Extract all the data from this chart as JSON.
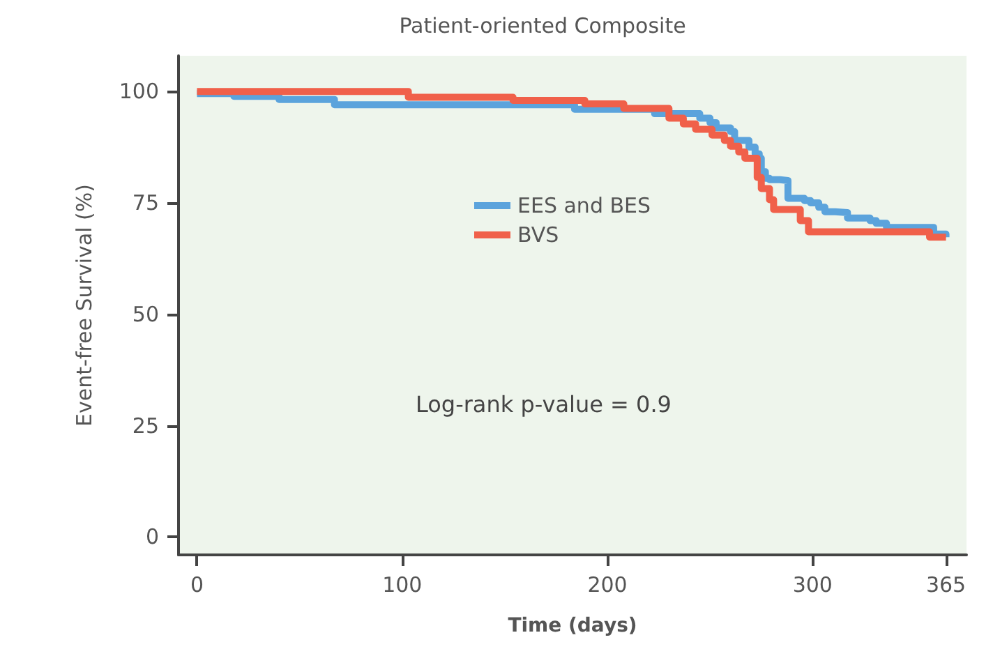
{
  "chart_data": {
    "type": "step",
    "title": "Patient-oriented Composite",
    "xlabel": "Time (days)",
    "ylabel": "Event-free Survival (%)",
    "xlim": [
      -9,
      375
    ],
    "xticks": [
      0,
      100,
      200,
      300,
      365
    ],
    "ylim": [
      -4,
      108
    ],
    "yticks": [
      0,
      25,
      50,
      75,
      100
    ],
    "grid": false,
    "legend": "right",
    "marker": "none",
    "line_style": "solid",
    "annotations": [
      "Log-rank p-value = 0.9"
    ],
    "series": [
      {
        "name": "EES and BES",
        "color": "#5ba3dc",
        "x": [
          0,
          18,
          40,
          67,
          184,
          223,
          245,
          250,
          253,
          260,
          262,
          269,
          272,
          274,
          275,
          277,
          279,
          284,
          288,
          296,
          299,
          303,
          306,
          311,
          317,
          328,
          331,
          336,
          359,
          365
        ],
        "values": [
          99.5,
          98.9,
          98.2,
          97,
          96,
          95,
          94,
          93,
          91.8,
          91,
          89,
          87.5,
          86,
          85,
          82,
          80.5,
          80.2,
          80,
          76,
          75.5,
          75,
          74,
          73,
          72.8,
          71.6,
          71,
          70.4,
          69.5,
          68,
          67.3
        ]
      },
      {
        "name": "BVS",
        "color": "#f0604a",
        "x": [
          0,
          103,
          154,
          189,
          208,
          230,
          237,
          243,
          251,
          257,
          260,
          264,
          267,
          273,
          275,
          279,
          281,
          294,
          298,
          357,
          365
        ],
        "values": [
          100,
          98.7,
          98,
          97.2,
          96.2,
          94,
          92.7,
          91.5,
          90.2,
          89,
          87.7,
          86.4,
          85,
          80.7,
          78.2,
          75.7,
          73.5,
          71,
          68.5,
          67.3,
          67.3
        ]
      }
    ]
  }
}
